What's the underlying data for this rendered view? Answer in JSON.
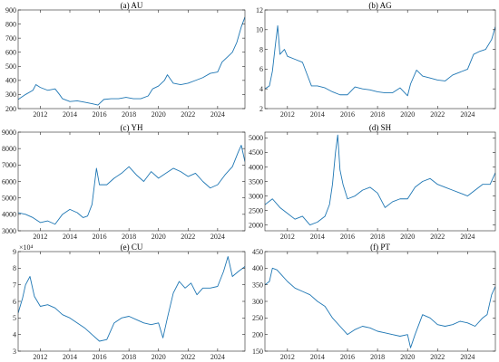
{
  "chart_data": [
    {
      "id": "au",
      "type": "line",
      "title": "(a) AU",
      "xlim": [
        2010.5,
        2025.85
      ],
      "ylim": [
        200,
        900
      ],
      "xticks": [
        "2012",
        "2014",
        "2016",
        "2018",
        "2020",
        "2022",
        "2024"
      ],
      "yticks": [
        "200",
        "300",
        "400",
        "500",
        "600",
        "700",
        "800",
        "900"
      ],
      "exponent": "",
      "color": "#1f77b4",
      "x": [
        2010.5,
        2011.0,
        2011.5,
        2011.7,
        2012.0,
        2012.5,
        2013.0,
        2013.3,
        2013.5,
        2014.0,
        2014.5,
        2015.0,
        2015.5,
        2015.9,
        2016.3,
        2016.8,
        2017.3,
        2017.8,
        2018.3,
        2018.8,
        2019.3,
        2019.6,
        2020.0,
        2020.4,
        2020.6,
        2021.0,
        2021.5,
        2022.0,
        2022.5,
        2023.0,
        2023.5,
        2024.0,
        2024.3,
        2024.7,
        2025.0,
        2025.3,
        2025.6,
        2025.85
      ],
      "y": [
        265,
        300,
        330,
        370,
        350,
        330,
        340,
        300,
        270,
        250,
        255,
        245,
        235,
        225,
        265,
        270,
        270,
        280,
        270,
        270,
        290,
        340,
        360,
        400,
        440,
        380,
        370,
        380,
        400,
        420,
        450,
        460,
        530,
        570,
        600,
        670,
        780,
        850
      ]
    },
    {
      "id": "ag",
      "type": "line",
      "title": "(b) AG",
      "xlim": [
        2010.5,
        2025.85
      ],
      "ylim": [
        2,
        12
      ],
      "xticks": [
        "2012",
        "2014",
        "2016",
        "2018",
        "2020",
        "2022",
        "2024"
      ],
      "yticks": [
        "2",
        "4",
        "6",
        "8",
        "10",
        "12"
      ],
      "exponent": "",
      "color": "#1f77b4",
      "x": [
        2010.5,
        2010.8,
        2011.0,
        2011.2,
        2011.35,
        2011.5,
        2011.8,
        2012.0,
        2012.5,
        2013.0,
        2013.3,
        2013.6,
        2014.0,
        2014.5,
        2015.0,
        2015.5,
        2016.0,
        2016.5,
        2017.0,
        2017.5,
        2018.0,
        2018.5,
        2019.0,
        2019.5,
        2020.0,
        2020.2,
        2020.6,
        2021.0,
        2021.5,
        2022.0,
        2022.5,
        2023.0,
        2023.5,
        2024.0,
        2024.4,
        2024.8,
        2025.2,
        2025.6,
        2025.85
      ],
      "y": [
        4.0,
        4.3,
        5.8,
        8.5,
        10.4,
        7.5,
        8.0,
        7.3,
        7.0,
        6.7,
        5.5,
        4.3,
        4.3,
        4.1,
        3.7,
        3.4,
        3.4,
        4.2,
        4.0,
        3.9,
        3.7,
        3.6,
        3.6,
        4.1,
        3.3,
        4.5,
        5.9,
        5.3,
        5.1,
        4.9,
        4.8,
        5.4,
        5.7,
        6.0,
        7.5,
        7.8,
        8.0,
        9.0,
        10.3
      ]
    },
    {
      "id": "yh",
      "type": "line",
      "title": "(c) YH",
      "xlim": [
        2010.5,
        2025.85
      ],
      "ylim": [
        3000,
        9000
      ],
      "xticks": [
        "2012",
        "2014",
        "2016",
        "2018",
        "2020",
        "2022",
        "2024"
      ],
      "yticks": [
        "3000",
        "4000",
        "5000",
        "6000",
        "7000",
        "8000",
        "9000"
      ],
      "exponent": "",
      "color": "#1f77b4",
      "x": [
        2010.5,
        2011.0,
        2011.5,
        2012.0,
        2012.5,
        2013.0,
        2013.5,
        2014.0,
        2014.5,
        2014.9,
        2015.2,
        2015.5,
        2015.8,
        2016.0,
        2016.5,
        2017.0,
        2017.5,
        2018.0,
        2018.5,
        2019.0,
        2019.5,
        2020.0,
        2020.5,
        2021.0,
        2021.5,
        2022.0,
        2022.5,
        2023.0,
        2023.5,
        2024.0,
        2024.5,
        2025.0,
        2025.4,
        2025.6,
        2025.85
      ],
      "y": [
        4100,
        4000,
        3800,
        3500,
        3600,
        3400,
        4000,
        4300,
        4100,
        3800,
        3900,
        4600,
        6800,
        5800,
        5800,
        6200,
        6500,
        6900,
        6400,
        6000,
        6600,
        6200,
        6500,
        6800,
        6600,
        6300,
        6500,
        6000,
        5600,
        5800,
        6400,
        6900,
        7800,
        8200,
        7200
      ]
    },
    {
      "id": "sh",
      "type": "line",
      "title": "(d) SH",
      "xlim": [
        2010.5,
        2025.85
      ],
      "ylim": [
        1800,
        5200
      ],
      "xticks": [
        "2012",
        "2014",
        "2016",
        "2018",
        "2020",
        "2022",
        "2024"
      ],
      "yticks": [
        "2000",
        "2500",
        "3000",
        "3500",
        "4000",
        "4500",
        "5000"
      ],
      "exponent": "",
      "color": "#1f77b4",
      "x": [
        2010.5,
        2011.0,
        2011.5,
        2012.0,
        2012.5,
        2013.0,
        2013.5,
        2014.0,
        2014.5,
        2014.8,
        2015.0,
        2015.2,
        2015.35,
        2015.5,
        2015.7,
        2016.0,
        2016.5,
        2017.0,
        2017.5,
        2018.0,
        2018.5,
        2019.0,
        2019.5,
        2020.0,
        2020.5,
        2021.0,
        2021.5,
        2022.0,
        2022.5,
        2023.0,
        2023.5,
        2024.0,
        2024.5,
        2025.0,
        2025.5,
        2025.85
      ],
      "y": [
        2700,
        2900,
        2600,
        2400,
        2200,
        2300,
        2000,
        2100,
        2300,
        2700,
        3400,
        4500,
        5100,
        3900,
        3400,
        2900,
        3000,
        3200,
        3300,
        3100,
        2600,
        2800,
        2900,
        2900,
        3300,
        3500,
        3600,
        3400,
        3300,
        3200,
        3100,
        3000,
        3200,
        3400,
        3400,
        3800
      ]
    },
    {
      "id": "cu",
      "type": "line",
      "title": "(e) CU",
      "xlim": [
        2010.5,
        2025.85
      ],
      "ylim": [
        3,
        9
      ],
      "xticks": [
        "2012",
        "2014",
        "2016",
        "2018",
        "2020",
        "2022",
        "2024"
      ],
      "yticks": [
        "3",
        "4",
        "5",
        "6",
        "7",
        "8",
        "9"
      ],
      "exponent": "×10⁴",
      "color": "#1f77b4",
      "x": [
        2010.5,
        2010.8,
        2011.0,
        2011.3,
        2011.6,
        2012.0,
        2012.5,
        2013.0,
        2013.5,
        2014.0,
        2014.5,
        2015.0,
        2015.5,
        2016.0,
        2016.5,
        2017.0,
        2017.5,
        2018.0,
        2018.5,
        2019.0,
        2019.5,
        2020.0,
        2020.3,
        2020.6,
        2021.0,
        2021.4,
        2021.8,
        2022.2,
        2022.6,
        2023.0,
        2023.5,
        2024.0,
        2024.4,
        2024.7,
        2025.0,
        2025.4,
        2025.85
      ],
      "y": [
        5.3,
        6.2,
        7.0,
        7.5,
        6.3,
        5.7,
        5.8,
        5.6,
        5.2,
        5.0,
        4.7,
        4.4,
        4.0,
        3.6,
        3.7,
        4.7,
        5.0,
        5.1,
        4.9,
        4.7,
        4.6,
        4.7,
        3.8,
        5.0,
        6.5,
        7.2,
        6.8,
        7.1,
        6.4,
        6.8,
        6.8,
        6.9,
        7.8,
        8.7,
        7.5,
        7.8,
        8.1
      ]
    },
    {
      "id": "pt",
      "type": "line",
      "title": "(f) PT",
      "xlim": [
        2010.5,
        2025.85
      ],
      "ylim": [
        150,
        450
      ],
      "xticks": [
        "2012",
        "2014",
        "2016",
        "2018",
        "2020",
        "2022",
        "2024"
      ],
      "yticks": [
        "150",
        "200",
        "250",
        "300",
        "350",
        "400",
        "450"
      ],
      "exponent": "",
      "color": "#1f77b4",
      "x": [
        2010.5,
        2010.8,
        2011.0,
        2011.3,
        2011.6,
        2012.0,
        2012.5,
        2013.0,
        2013.5,
        2014.0,
        2014.5,
        2015.0,
        2015.5,
        2016.0,
        2016.5,
        2017.0,
        2017.5,
        2018.0,
        2018.5,
        2019.0,
        2019.5,
        2020.0,
        2020.2,
        2020.5,
        2021.0,
        2021.5,
        2022.0,
        2022.5,
        2023.0,
        2023.5,
        2024.0,
        2024.5,
        2025.0,
        2025.3,
        2025.6,
        2025.85
      ],
      "y": [
        350,
        360,
        400,
        395,
        380,
        360,
        340,
        330,
        320,
        300,
        285,
        250,
        225,
        200,
        215,
        225,
        220,
        210,
        205,
        200,
        195,
        200,
        160,
        200,
        260,
        250,
        230,
        225,
        230,
        240,
        235,
        225,
        250,
        260,
        320,
        345
      ]
    }
  ]
}
